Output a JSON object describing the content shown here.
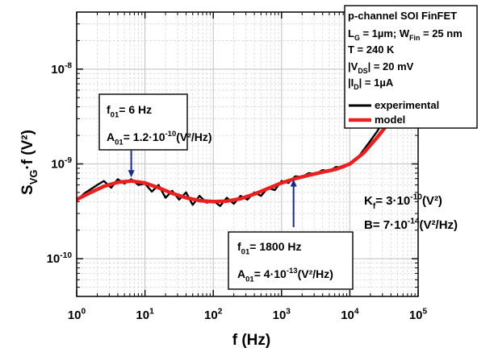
{
  "chart_data": {
    "type": "line",
    "xscale": "log",
    "yscale": "log",
    "xlim": [
      1,
      100000
    ],
    "ylim": [
      4e-11,
      4e-08
    ],
    "xlabel": "f (Hz)",
    "ylabel": {
      "main": "S",
      "sub": "VG",
      "rest": "·f (V²)"
    },
    "grid": true,
    "x_ticks": [
      {
        "value": 1,
        "base": "10",
        "exp": "0"
      },
      {
        "value": 10,
        "base": "10",
        "exp": "1"
      },
      {
        "value": 100,
        "base": "10",
        "exp": "2"
      },
      {
        "value": 1000,
        "base": "10",
        "exp": "3"
      },
      {
        "value": 10000,
        "base": "10",
        "exp": "4"
      },
      {
        "value": 100000,
        "base": "10",
        "exp": "5"
      }
    ],
    "y_ticks": [
      {
        "value": 1e-10,
        "base": "10",
        "exp": "-10"
      },
      {
        "value": 1e-09,
        "base": "10",
        "exp": "-9"
      },
      {
        "value": 1e-08,
        "base": "10",
        "exp": "-8"
      }
    ],
    "series": [
      {
        "name": "experimental",
        "color": "#000000",
        "x": [
          1,
          1.3,
          1.6,
          2,
          2.5,
          3.2,
          4,
          5,
          6.3,
          8,
          10,
          12.6,
          15.8,
          20,
          25,
          31.6,
          40,
          50,
          63,
          80,
          100,
          126,
          158,
          200,
          251,
          316,
          398,
          501,
          631,
          794,
          1000,
          1259,
          1585,
          1995,
          2512,
          3162,
          3981,
          5012,
          6310,
          7943,
          10000,
          12589,
          15849,
          19953,
          25119,
          31623,
          39811,
          50119
        ],
        "y": [
          4.1e-10,
          4.9e-10,
          5.4e-10,
          6e-10,
          6.6e-10,
          5.6e-10,
          6.9e-10,
          6.2e-10,
          6.9e-10,
          6e-10,
          6.2e-10,
          5.1e-10,
          6e-10,
          4.4e-10,
          5.2e-10,
          4.2e-10,
          5e-10,
          3.7e-10,
          4.6e-10,
          3.9e-10,
          4.1e-10,
          3.6e-10,
          4.4e-10,
          3.8e-10,
          4.6e-10,
          4.2e-10,
          5e-10,
          4.6e-10,
          5.6e-10,
          5.3e-10,
          6.6e-10,
          6.3e-10,
          7.4e-10,
          7.3e-10,
          8e-10,
          7.8e-10,
          8.6e-10,
          8.4e-10,
          9.3e-10,
          9.1e-10,
          1.02e-09,
          1.12e-09,
          1.4e-09,
          1.75e-09,
          2.2e-09,
          2.9e-09,
          3.6e-09,
          4.4e-09
        ]
      },
      {
        "name": "model",
        "color": "#e8201f",
        "x": [
          1,
          1.6,
          2.5,
          4,
          6.3,
          10,
          15.8,
          25,
          40,
          63,
          100,
          158,
          251,
          398,
          631,
          1000,
          1585,
          2512,
          3981,
          6310,
          10000,
          15849,
          25119,
          39811,
          50119
        ],
        "y": [
          4.2e-10,
          5e-10,
          5.8e-10,
          6.4e-10,
          6.6e-10,
          6.3e-10,
          5.6e-10,
          4.9e-10,
          4.4e-10,
          4.1e-10,
          4e-10,
          4.05e-10,
          4.3e-10,
          4.8e-10,
          5.5e-10,
          6.3e-10,
          7e-10,
          7.6e-10,
          8.2e-10,
          8.8e-10,
          1e-09,
          1.3e-09,
          1.9e-09,
          2.9e-09,
          3.6e-09
        ]
      }
    ],
    "annotations": [
      {
        "id": "ann1",
        "lines": [
          {
            "parts": [
              {
                "t": "f"
              },
              {
                "t": "01",
                "sub": true
              },
              {
                "t": "= 6 Hz"
              }
            ]
          },
          {
            "parts": [
              {
                "t": "A"
              },
              {
                "t": "01",
                "sub": true
              },
              {
                "t": "= 1.2·10"
              },
              {
                "t": "-10",
                "sup": true
              },
              {
                "t": "(V²/Hz)"
              }
            ]
          }
        ],
        "arrow_x": 6.3,
        "arrow_tip_y": 6.8e-10
      },
      {
        "id": "ann2",
        "lines": [
          {
            "parts": [
              {
                "t": "f"
              },
              {
                "t": "01",
                "sub": true
              },
              {
                "t": "= 1800 Hz"
              }
            ]
          },
          {
            "parts": [
              {
                "t": "A"
              },
              {
                "t": "01",
                "sub": true
              },
              {
                "t": "= 4·10"
              },
              {
                "t": "-13",
                "sup": true
              },
              {
                "t": "(V²/Hz)"
              }
            ]
          }
        ],
        "arrow_x": 1500,
        "arrow_tip_y": 7.3e-10
      },
      {
        "id": "params",
        "lines": [
          {
            "parts": [
              {
                "t": "K"
              },
              {
                "t": "f",
                "sub": true
              },
              {
                "t": "= 3·10"
              },
              {
                "t": "-10",
                "sup": true
              },
              {
                "t": "(V²)"
              }
            ]
          },
          {
            "parts": [
              {
                "t": "B= 7·10"
              },
              {
                "t": "-14",
                "sup": true
              },
              {
                "t": "(V²/Hz)"
              }
            ]
          }
        ]
      }
    ],
    "legend": {
      "placement": "top-right",
      "info": [
        {
          "parts": [
            {
              "t": "p-channel SOI FinFET"
            }
          ]
        },
        {
          "parts": [
            {
              "t": "L"
            },
            {
              "t": "G",
              "sub": true
            },
            {
              "t": " = 1µm; W"
            },
            {
              "t": "Fin",
              "sub": true
            },
            {
              "t": " = 25 nm"
            }
          ]
        },
        {
          "parts": [
            {
              "t": "T = 240 K"
            }
          ]
        },
        {
          "parts": [
            {
              "t": "|V"
            },
            {
              "t": "DS",
              "sub": true
            },
            {
              "t": "| = 20 mV"
            }
          ]
        },
        {
          "parts": [
            {
              "t": "|I"
            },
            {
              "t": "D",
              "sub": true
            },
            {
              "t": "| = 1µA"
            }
          ]
        }
      ],
      "entries": [
        "experimental",
        "model"
      ]
    }
  }
}
